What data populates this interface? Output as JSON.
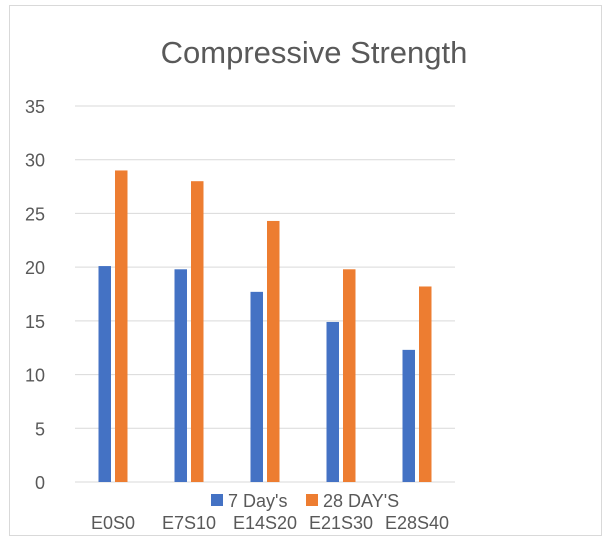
{
  "chart_data": {
    "type": "bar",
    "title": "Compressive Strength",
    "categories": [
      "E0S0",
      "E7S10",
      "E14S20",
      "E21S30",
      "E28S40"
    ],
    "series": [
      {
        "name": "7 Day's",
        "values": [
          20.1,
          19.8,
          17.7,
          14.9,
          12.3
        ],
        "color": "#4472C4"
      },
      {
        "name": "28 DAY'S",
        "values": [
          29.0,
          28.0,
          24.3,
          19.8,
          18.2
        ],
        "color": "#ED7D31"
      }
    ],
    "ylim": [
      0,
      35
    ],
    "yticks": [
      "0",
      "5",
      "10",
      "15",
      "20",
      "25",
      "30",
      "35"
    ],
    "xlabel": "",
    "ylabel": "",
    "grid": true,
    "legend_position": "bottom"
  },
  "colors": {
    "frame_border": "#D9D9D9",
    "grid": "#D9D9D9",
    "text": "#595959"
  }
}
